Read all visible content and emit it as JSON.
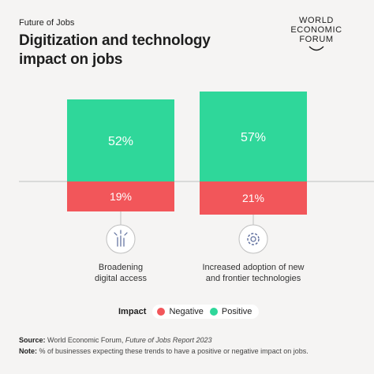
{
  "header": {
    "kicker": "Future of Jobs",
    "title": "Digitization and technology impact on jobs"
  },
  "logo": {
    "line1": "WORLD",
    "line2": "ECONOMIC",
    "line3": "FORUM"
  },
  "chart_data": {
    "type": "bar",
    "categories": [
      "Broadening digital access",
      "Increased adoption of new and frontier technologies"
    ],
    "series": [
      {
        "name": "Positive",
        "values": [
          52,
          57
        ],
        "labels": [
          "52%",
          "57%"
        ]
      },
      {
        "name": "Negative",
        "values": [
          19,
          21
        ],
        "labels": [
          "19%",
          "21%"
        ]
      }
    ],
    "icons": [
      "digital-access-icon",
      "technology-gear-icon"
    ],
    "colors": {
      "Positive": "#2fd79a",
      "Negative": "#f2565a"
    },
    "stacked": "diverging",
    "legend_placement": "bottom-center"
  },
  "legend": {
    "title": "Impact",
    "items": [
      {
        "label": "Negative",
        "color": "#f2565a"
      },
      {
        "label": "Positive",
        "color": "#2fd79a"
      }
    ]
  },
  "footer": {
    "source_label": "Source:",
    "source_text": "World Economic Forum,",
    "source_italic": "Future of Jobs Report 2023",
    "note_label": "Note:",
    "note_text": "% of businesses expecting these trends to have a positive or negative impact on jobs."
  }
}
